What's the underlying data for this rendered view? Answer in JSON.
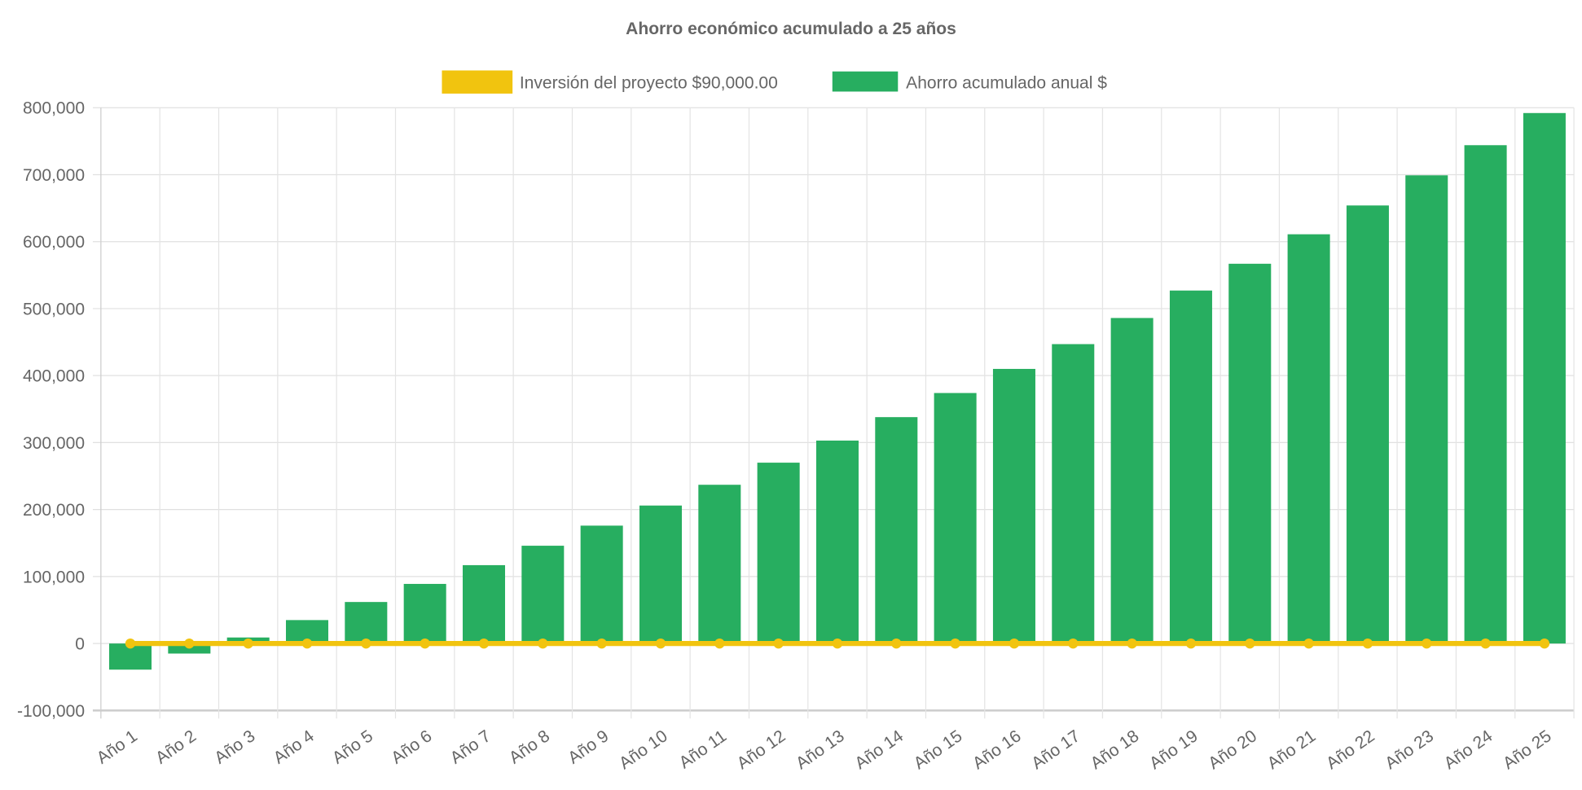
{
  "chart_data": {
    "type": "bar",
    "title": "Ahorro económico acumulado a 25 años",
    "categories": [
      "Año 1",
      "Año 2",
      "Año 3",
      "Año 4",
      "Año 5",
      "Año 6",
      "Año 7",
      "Año 8",
      "Año 9",
      "Año 10",
      "Año 11",
      "Año 12",
      "Año 13",
      "Año 14",
      "Año 15",
      "Año 16",
      "Año 17",
      "Año 18",
      "Año 19",
      "Año 20",
      "Año 21",
      "Año 22",
      "Año 23",
      "Año 24",
      "Año 25"
    ],
    "series": [
      {
        "name": "Inversión del proyecto $90,000.00",
        "type": "line",
        "color": "#f1c40f",
        "values": [
          0,
          0,
          0,
          0,
          0,
          0,
          0,
          0,
          0,
          0,
          0,
          0,
          0,
          0,
          0,
          0,
          0,
          0,
          0,
          0,
          0,
          0,
          0,
          0,
          0
        ]
      },
      {
        "name": "Ahorro acumulado anual $",
        "type": "bar",
        "color": "#27ae60",
        "values": [
          -39000,
          -15000,
          9000,
          35000,
          62000,
          89000,
          117000,
          146000,
          176000,
          206000,
          237000,
          270000,
          303000,
          338000,
          374000,
          410000,
          447000,
          486000,
          527000,
          567000,
          611000,
          654000,
          699000,
          744000,
          792000
        ]
      }
    ],
    "ylim": [
      -100000,
      800000
    ],
    "yticks": [
      -100000,
      0,
      100000,
      200000,
      300000,
      400000,
      500000,
      600000,
      700000,
      800000
    ],
    "ytick_labels": [
      "-100,000",
      "0",
      "100,000",
      "200,000",
      "300,000",
      "400,000",
      "500,000",
      "600,000",
      "700,000",
      "800,000"
    ],
    "grid": true,
    "legend": "top"
  }
}
